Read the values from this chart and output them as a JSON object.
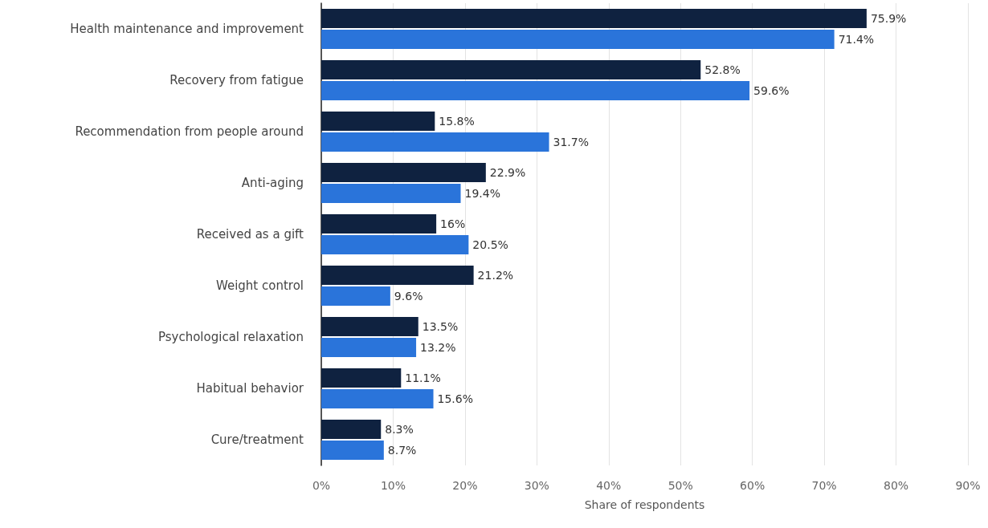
{
  "chart_data": {
    "type": "bar",
    "orientation": "horizontal",
    "xlabel": "Share of respondents",
    "categories": [
      "Health maintenance and improvement",
      "Recovery from fatigue",
      "Recommendation from people around",
      "Anti-aging",
      "Received as a gift",
      "Weight control",
      "Psychological relaxation",
      "Habitual behavior",
      "Cure/treatment"
    ],
    "series": [
      {
        "color": "#0f2240",
        "values": [
          75.9,
          52.8,
          15.8,
          22.9,
          16,
          21.2,
          13.5,
          11.1,
          8.3
        ],
        "value_labels": [
          "75.9%",
          "52.8%",
          "15.8%",
          "22.9%",
          "16%",
          "21.2%",
          "13.5%",
          "11.1%",
          "8.3%"
        ]
      },
      {
        "color": "#2a74da",
        "values": [
          71.4,
          59.6,
          31.7,
          19.4,
          20.5,
          9.6,
          13.2,
          15.6,
          8.7
        ],
        "value_labels": [
          "71.4%",
          "59.6%",
          "31.7%",
          "19.4%",
          "20.5%",
          "9.6%",
          "13.2%",
          "15.6%",
          "8.7%"
        ]
      }
    ],
    "xlim": [
      0,
      90
    ],
    "xticks": [
      {
        "value": 0,
        "label": "0%"
      },
      {
        "value": 10,
        "label": "10%"
      },
      {
        "value": 20,
        "label": "20%"
      },
      {
        "value": 30,
        "label": "30%"
      },
      {
        "value": 40,
        "label": "40%"
      },
      {
        "value": 50,
        "label": "50%"
      },
      {
        "value": 60,
        "label": "60%"
      },
      {
        "value": 70,
        "label": "70%"
      },
      {
        "value": 80,
        "label": "80%"
      },
      {
        "value": 90,
        "label": "90%"
      }
    ],
    "grid": "x"
  }
}
